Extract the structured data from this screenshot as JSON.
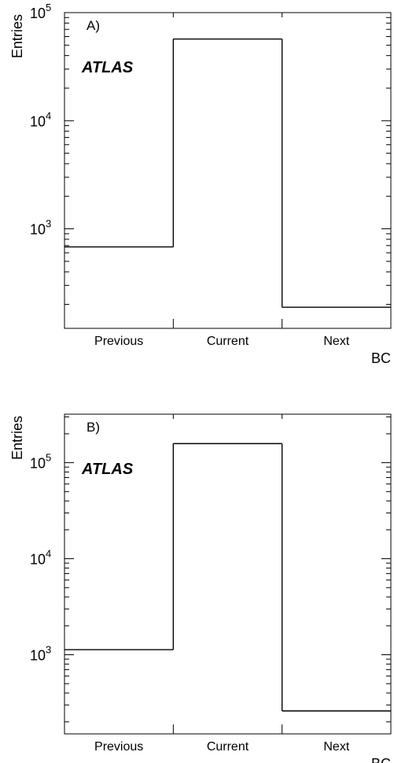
{
  "chart_data": [
    {
      "type": "bar",
      "style": "histogram-step",
      "panel_label": "A)",
      "logo": "ATLAS",
      "xlabel": "BC",
      "ylabel": "Entries",
      "categories": [
        "Previous",
        "Current",
        "Next"
      ],
      "values": [
        680,
        57000,
        188
      ],
      "y_log": true,
      "ylim": [
        120,
        100000
      ],
      "y_major_ticks": [
        {
          "value": 1000,
          "base": "10",
          "exp": "3"
        },
        {
          "value": 10000,
          "base": "10",
          "exp": "4"
        },
        {
          "value": 100000,
          "base": "10",
          "exp": "5"
        }
      ],
      "grid": false
    },
    {
      "type": "bar",
      "style": "histogram-step",
      "panel_label": "B)",
      "logo": "ATLAS",
      "xlabel": "BC",
      "ylabel": "Entries",
      "categories": [
        "Previous",
        "Current",
        "Next"
      ],
      "values": [
        1130,
        158000,
        260
      ],
      "y_log": true,
      "ylim": [
        150,
        320000
      ],
      "y_major_ticks": [
        {
          "value": 1000,
          "base": "10",
          "exp": "3"
        },
        {
          "value": 10000,
          "base": "10",
          "exp": "4"
        },
        {
          "value": 100000,
          "base": "10",
          "exp": "5"
        }
      ],
      "grid": false
    }
  ]
}
